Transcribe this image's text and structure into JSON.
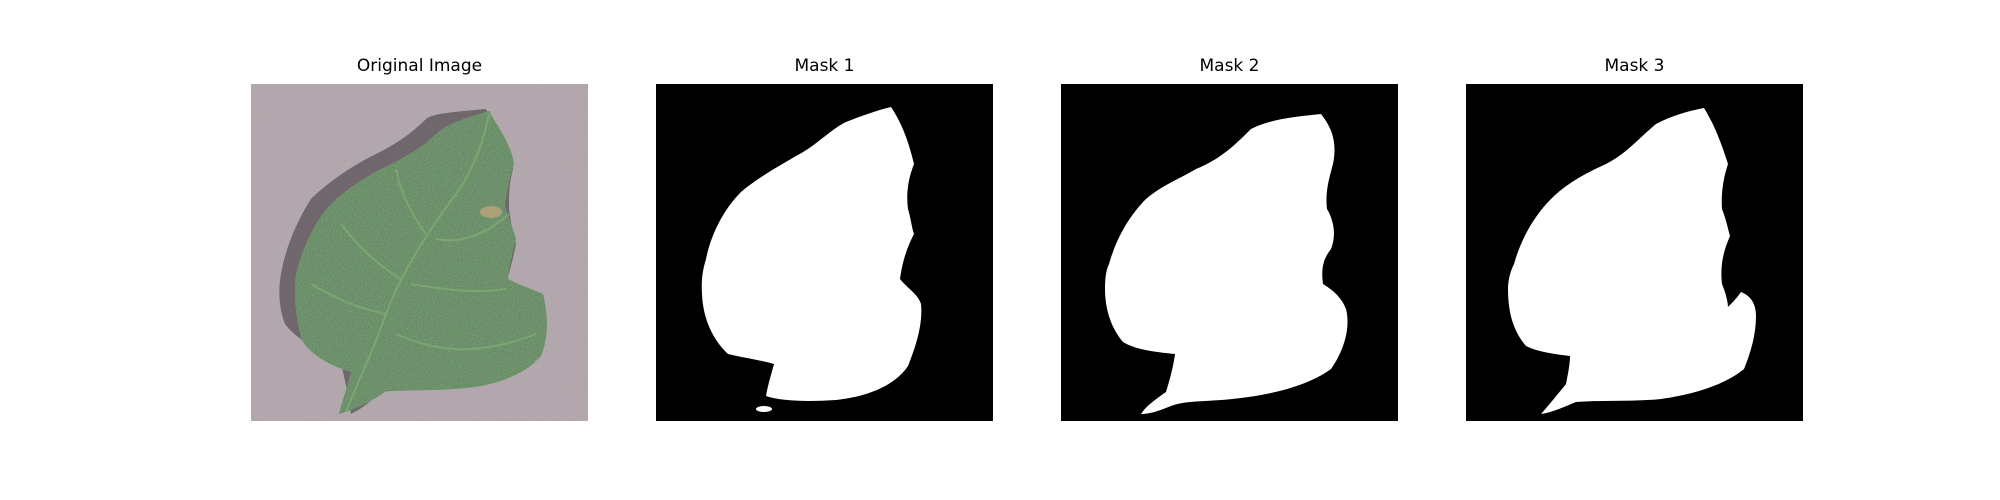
{
  "panels": [
    {
      "title": "Original Image",
      "kind": "photo",
      "subject": "leaf-photo"
    },
    {
      "title": "Mask 1",
      "kind": "mask"
    },
    {
      "title": "Mask 2",
      "kind": "mask"
    },
    {
      "title": "Mask 3",
      "kind": "mask"
    }
  ],
  "colors": {
    "page_background": "#ffffff",
    "photo_background": "#b9aeb4",
    "leaf_green": "#3f7a3b",
    "leaf_vein": "#7fa971",
    "mask_background": "#000000",
    "mask_foreground": "#ffffff",
    "title_text": "#000000"
  }
}
